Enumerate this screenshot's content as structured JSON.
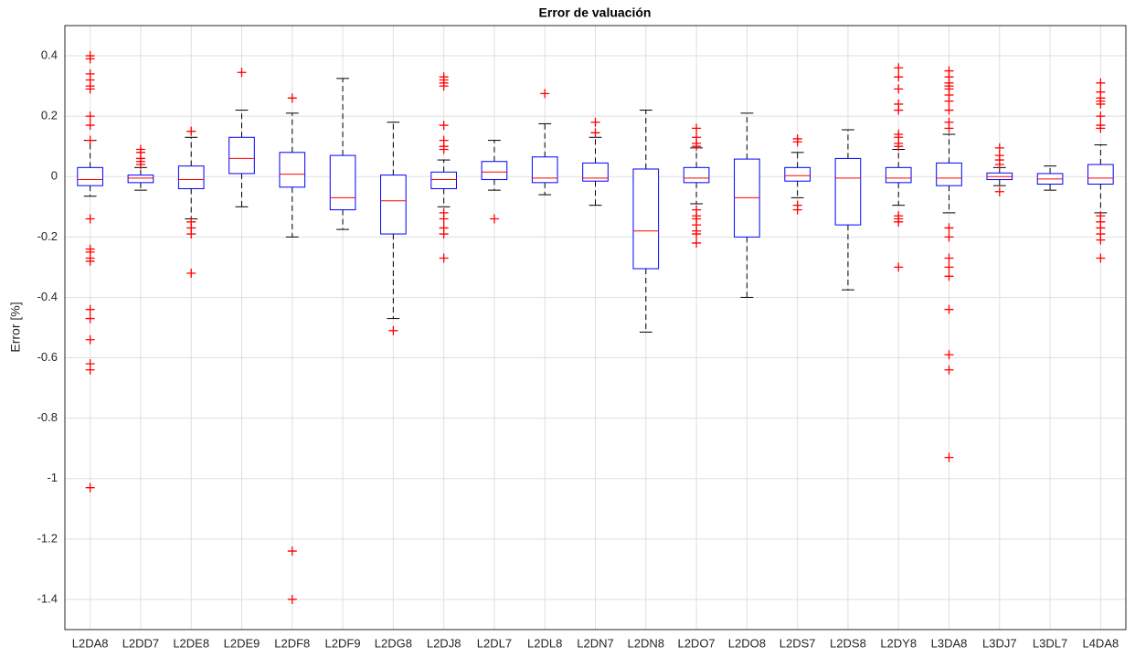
{
  "chart_data": {
    "type": "box",
    "title": "Error de valuación",
    "y_label": "Error [%]",
    "categories": [
      "L2DA8",
      "L2DD7",
      "L2DE8",
      "L2DE9",
      "L2DF8",
      "L2DF9",
      "L2DG8",
      "L2DJ8",
      "L2DL7",
      "L2DL8",
      "L2DN7",
      "L2DN8",
      "L2DO7",
      "L2DO8",
      "L2DS7",
      "L2DS8",
      "L2DY8",
      "L3DA8",
      "L3DJ7",
      "L3DL7",
      "L4DA8"
    ],
    "boxes": [
      {
        "whislo": -0.065,
        "q1": -0.03,
        "med": -0.01,
        "q3": 0.03,
        "whishi": 0.12,
        "outliers": [
          0.4,
          0.39,
          0.34,
          0.32,
          0.3,
          0.29,
          0.2,
          0.17,
          0.12,
          -0.14,
          -0.24,
          -0.25,
          -0.27,
          -0.28,
          -0.44,
          -0.47,
          -0.54,
          -0.62,
          -0.64,
          -1.03
        ]
      },
      {
        "whislo": -0.045,
        "q1": -0.02,
        "med": -0.005,
        "q3": 0.005,
        "whishi": 0.03,
        "outliers": [
          0.09,
          0.08,
          0.06,
          0.05,
          0.04
        ]
      },
      {
        "whislo": -0.14,
        "q1": -0.04,
        "med": -0.01,
        "q3": 0.035,
        "whishi": 0.13,
        "outliers": [
          0.15,
          -0.15,
          -0.17,
          -0.19,
          -0.32
        ]
      },
      {
        "whislo": -0.1,
        "q1": 0.01,
        "med": 0.06,
        "q3": 0.13,
        "whishi": 0.22,
        "outliers": [
          0.345
        ]
      },
      {
        "whislo": -0.2,
        "q1": -0.035,
        "med": 0.008,
        "q3": 0.08,
        "whishi": 0.21,
        "outliers": [
          0.26,
          -1.24,
          -1.4
        ]
      },
      {
        "whislo": -0.175,
        "q1": -0.11,
        "med": -0.07,
        "q3": 0.07,
        "whishi": 0.325,
        "outliers": []
      },
      {
        "whislo": -0.47,
        "q1": -0.19,
        "med": -0.08,
        "q3": 0.005,
        "whishi": 0.18,
        "outliers": [
          -0.51
        ]
      },
      {
        "whislo": -0.1,
        "q1": -0.04,
        "med": -0.01,
        "q3": 0.015,
        "whishi": 0.055,
        "outliers": [
          0.33,
          0.32,
          0.31,
          0.3,
          0.17,
          0.12,
          0.1,
          0.09,
          -0.12,
          -0.14,
          -0.17,
          -0.19,
          -0.27
        ]
      },
      {
        "whislo": -0.045,
        "q1": -0.01,
        "med": 0.015,
        "q3": 0.05,
        "whishi": 0.12,
        "outliers": [
          -0.14
        ]
      },
      {
        "whislo": -0.06,
        "q1": -0.02,
        "med": -0.005,
        "q3": 0.065,
        "whishi": 0.175,
        "outliers": [
          0.275
        ]
      },
      {
        "whislo": -0.095,
        "q1": -0.015,
        "med": -0.005,
        "q3": 0.045,
        "whishi": 0.13,
        "outliers": [
          0.18,
          0.145
        ]
      },
      {
        "whislo": -0.515,
        "q1": -0.305,
        "med": -0.18,
        "q3": 0.025,
        "whishi": 0.22,
        "outliers": []
      },
      {
        "whislo": -0.09,
        "q1": -0.02,
        "med": -0.005,
        "q3": 0.03,
        "whishi": 0.095,
        "outliers": [
          0.16,
          0.13,
          0.11,
          0.1,
          -0.11,
          -0.13,
          -0.14,
          -0.16,
          -0.18,
          -0.19,
          -0.22
        ]
      },
      {
        "whislo": -0.4,
        "q1": -0.2,
        "med": -0.07,
        "q3": 0.058,
        "whishi": 0.21,
        "outliers": []
      },
      {
        "whislo": -0.07,
        "q1": -0.015,
        "med": 0.003,
        "q3": 0.03,
        "whishi": 0.08,
        "outliers": [
          0.125,
          0.115,
          -0.095,
          -0.11
        ]
      },
      {
        "whislo": -0.375,
        "q1": -0.16,
        "med": -0.005,
        "q3": 0.06,
        "whishi": 0.155,
        "outliers": []
      },
      {
        "whislo": -0.095,
        "q1": -0.02,
        "med": -0.005,
        "q3": 0.03,
        "whishi": 0.09,
        "outliers": [
          0.36,
          0.33,
          0.29,
          0.24,
          0.22,
          0.14,
          0.13,
          0.11,
          0.1,
          -0.13,
          -0.14,
          -0.15,
          -0.3
        ]
      },
      {
        "whislo": -0.12,
        "q1": -0.03,
        "med": -0.005,
        "q3": 0.045,
        "whishi": 0.14,
        "outliers": [
          0.35,
          0.33,
          0.31,
          0.3,
          0.29,
          0.27,
          0.25,
          0.22,
          0.18,
          0.16,
          -0.17,
          -0.2,
          -0.27,
          -0.3,
          -0.33,
          -0.44,
          -0.59,
          -0.64,
          -0.93
        ]
      },
      {
        "whislo": -0.03,
        "q1": -0.01,
        "med": 0.0,
        "q3": 0.012,
        "whishi": 0.03,
        "outliers": [
          0.095,
          0.07,
          0.055,
          0.04,
          -0.05
        ]
      },
      {
        "whislo": -0.045,
        "q1": -0.025,
        "med": -0.008,
        "q3": 0.01,
        "whishi": 0.035,
        "outliers": []
      },
      {
        "whislo": -0.12,
        "q1": -0.025,
        "med": -0.005,
        "q3": 0.04,
        "whishi": 0.105,
        "outliers": [
          0.31,
          0.28,
          0.26,
          0.25,
          0.24,
          0.2,
          0.17,
          0.16,
          -0.13,
          -0.15,
          -0.17,
          -0.19,
          -0.21,
          -0.27
        ]
      }
    ],
    "ylim": [
      -1.5,
      0.5
    ],
    "yticks": [
      -1.4,
      -1.2,
      -1,
      -0.8,
      -0.6,
      -0.4,
      -0.2,
      0,
      0.2,
      0.4
    ],
    "grid": true,
    "box_color": "#0000ff",
    "median_color": "#ff0000",
    "whisker_color": "#000000",
    "outlier_color": "#ff0000"
  }
}
